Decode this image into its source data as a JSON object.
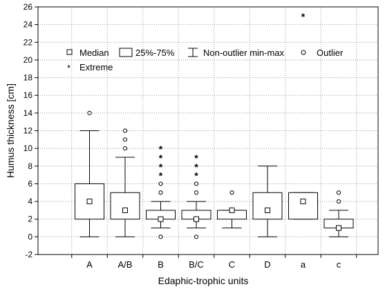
{
  "chart_data": {
    "type": "boxplot",
    "xlabel": "Edaphic-trophic units",
    "ylabel": "Humus thickness [cm]",
    "ylim": [
      -2,
      26
    ],
    "yticks": [
      -2,
      0,
      2,
      4,
      6,
      8,
      10,
      12,
      14,
      16,
      18,
      20,
      22,
      24,
      26
    ],
    "grid": true,
    "legend_position": "top-left",
    "legend": {
      "median": "Median",
      "box": "25%-75%",
      "whisker": "Non-outlier min-max",
      "outlier": "Outlier",
      "extreme": "Extreme"
    },
    "categories": [
      "A",
      "A/B",
      "B",
      "B/C",
      "C",
      "D",
      "a",
      "c"
    ],
    "groups": [
      {
        "category": "A",
        "median": 4,
        "q1": 2,
        "q3": 6,
        "whisker_min": 0,
        "whisker_max": 12,
        "outliers": [
          14
        ],
        "extremes": []
      },
      {
        "category": "A/B",
        "median": 3,
        "q1": 2,
        "q3": 5,
        "whisker_min": 0,
        "whisker_max": 9,
        "outliers": [
          10,
          11,
          12
        ],
        "extremes": []
      },
      {
        "category": "B",
        "median": 2,
        "q1": 2,
        "q3": 3,
        "whisker_min": 1,
        "whisker_max": 4,
        "outliers": [
          0,
          5,
          6
        ],
        "extremes": [
          7,
          8,
          9,
          10
        ]
      },
      {
        "category": "B/C",
        "median": 2,
        "q1": 2,
        "q3": 3,
        "whisker_min": 1,
        "whisker_max": 4,
        "outliers": [
          0,
          5,
          6
        ],
        "extremes": [
          7,
          8,
          9
        ]
      },
      {
        "category": "C",
        "median": 3,
        "q1": 2,
        "q3": 3,
        "whisker_min": 1,
        "whisker_max": 3,
        "outliers": [
          5
        ],
        "extremes": []
      },
      {
        "category": "D",
        "median": 3,
        "q1": 2,
        "q3": 5,
        "whisker_min": 0,
        "whisker_max": 8,
        "outliers": [],
        "extremes": []
      },
      {
        "category": "a",
        "median": 4,
        "q1": 2,
        "q3": 5,
        "whisker_min": 2,
        "whisker_max": 5,
        "outliers": [],
        "extremes": [
          25
        ]
      },
      {
        "category": "c",
        "median": 1,
        "q1": 1,
        "q3": 2,
        "whisker_min": 0,
        "whisker_max": 3,
        "outliers": [
          4,
          5
        ],
        "extremes": []
      }
    ]
  }
}
